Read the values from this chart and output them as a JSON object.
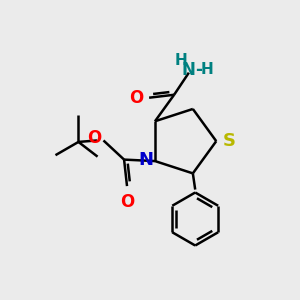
{
  "bg_color": "#ebebeb",
  "bond_color": "#000000",
  "S_color": "#b8b800",
  "N_color": "#0000cc",
  "O_color": "#ff0000",
  "NH2_N_color": "#008080",
  "NH2_H_color": "#008080",
  "line_width": 1.8,
  "font_size": 12,
  "figsize": [
    3.0,
    3.0
  ],
  "dpi": 100,
  "xlim": [
    0,
    10
  ],
  "ylim": [
    0,
    10
  ]
}
